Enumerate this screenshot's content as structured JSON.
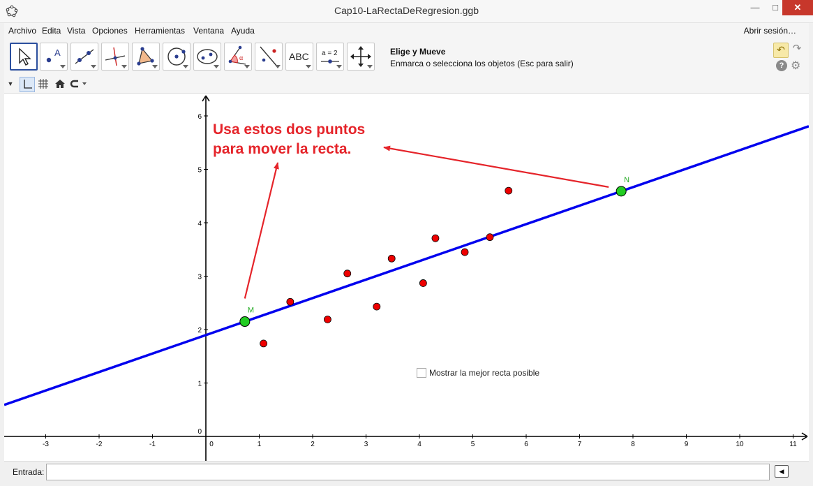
{
  "window": {
    "title": "Cap10-LaRectaDeRegresion.ggb"
  },
  "menu": {
    "items": [
      "Archivo",
      "Edita",
      "Vista",
      "Opciones",
      "Herramientas",
      "Ventana",
      "Ayuda"
    ],
    "login": "Abrir sesión…"
  },
  "toolbar": {
    "tools": [
      {
        "name": "move-tool-button",
        "icon": "cursor-arrow-icon",
        "label": ""
      },
      {
        "name": "point-tool-button",
        "icon": "point-a-icon",
        "label": "A"
      },
      {
        "name": "line-tool-button",
        "icon": "line-two-points-icon",
        "label": ""
      },
      {
        "name": "perpendicular-tool-button",
        "icon": "perpendicular-line-icon",
        "label": ""
      },
      {
        "name": "polygon-tool-button",
        "icon": "polygon-icon",
        "label": ""
      },
      {
        "name": "circle-tool-button",
        "icon": "circle-center-icon",
        "label": ""
      },
      {
        "name": "ellipse-tool-button",
        "icon": "ellipse-icon",
        "label": ""
      },
      {
        "name": "angle-tool-button",
        "icon": "angle-icon",
        "label": "α"
      },
      {
        "name": "reflect-tool-button",
        "icon": "reflect-point-icon",
        "label": ""
      },
      {
        "name": "text-tool-button",
        "icon": "text-abc-icon",
        "label": "ABC"
      },
      {
        "name": "slider-tool-button",
        "icon": "slider-icon",
        "label": "a = 2"
      },
      {
        "name": "move-view-tool-button",
        "icon": "move-graphics-icon",
        "label": ""
      }
    ],
    "help_title": "Elige y Mueve",
    "help_desc": "Enmarca o selecciona los objetos (Esc para salir)"
  },
  "graphics": {
    "annotation_line1": "Usa estos dos puntos",
    "annotation_line2": "para mover la recta.",
    "checkbox_label": "Mostrar la mejor recta posible",
    "checkbox_checked": false,
    "point_labels": {
      "M": "M",
      "N": "N"
    }
  },
  "chart_data": {
    "type": "scatter",
    "xlim": [
      -3.8,
      11.2
    ],
    "ylim": [
      -0.1,
      6.3
    ],
    "x_ticks": [
      -3,
      -2,
      -1,
      0,
      1,
      2,
      3,
      4,
      5,
      6,
      7,
      8,
      9,
      10,
      11
    ],
    "y_ticks": [
      0,
      1,
      2,
      3,
      4,
      5,
      6
    ],
    "grid": false,
    "colors": {
      "points": "#ee0000",
      "line": "#0000ee",
      "handles": "#22cc22",
      "annotation": "#e5242a"
    },
    "data_points": [
      {
        "x": 1.08,
        "y": 1.74
      },
      {
        "x": 1.58,
        "y": 2.52
      },
      {
        "x": 2.28,
        "y": 2.19
      },
      {
        "x": 2.65,
        "y": 3.05
      },
      {
        "x": 3.2,
        "y": 2.43
      },
      {
        "x": 3.48,
        "y": 3.33
      },
      {
        "x": 4.07,
        "y": 2.87
      },
      {
        "x": 4.3,
        "y": 3.71
      },
      {
        "x": 4.85,
        "y": 3.45
      },
      {
        "x": 5.32,
        "y": 3.73
      },
      {
        "x": 5.67,
        "y": 4.6
      }
    ],
    "line_points": {
      "M": {
        "x": 0.73,
        "y": 2.15
      },
      "N": {
        "x": 7.78,
        "y": 4.59
      }
    }
  },
  "inputbar": {
    "label": "Entrada:",
    "value": ""
  }
}
